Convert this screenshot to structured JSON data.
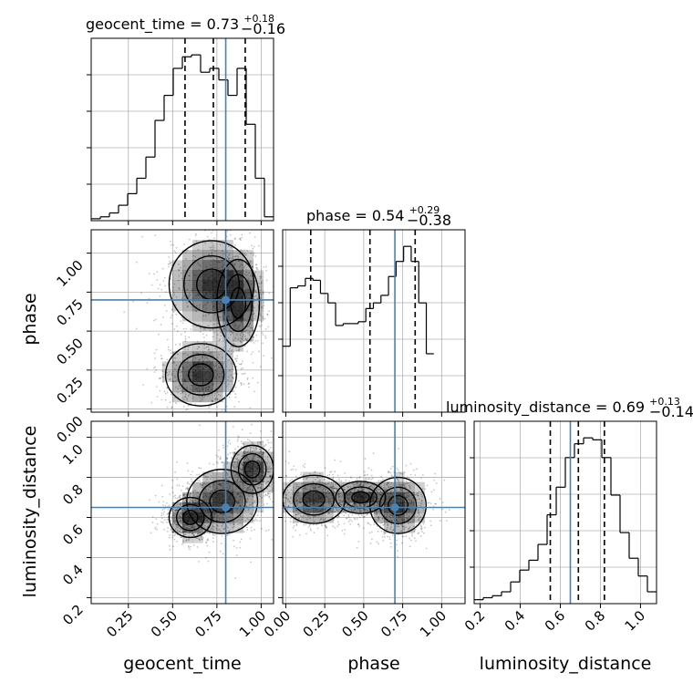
{
  "chart_data": {
    "type": "corner",
    "parameters": [
      "geocent_time",
      "phase",
      "luminosity_distance"
    ],
    "titles": {
      "geocent_time": {
        "name": "geocent_time",
        "median": "0.73",
        "plus": "+0.18",
        "minus": "−0.16"
      },
      "phase": {
        "name": "phase",
        "median": "0.54",
        "plus": "+0.29",
        "minus": "−0.38"
      },
      "luminosity_distance": {
        "name": "luminosity_distance",
        "median": "0.69",
        "plus": "+0.13",
        "minus": "−0.14"
      }
    },
    "axis_labels": {
      "x": [
        "geocent_time",
        "phase",
        "luminosity_distance"
      ],
      "y": [
        "phase",
        "luminosity_distance"
      ]
    },
    "ticks": {
      "geocent_time": {
        "range": [
          0.04,
          1.07
        ],
        "values": [
          0.25,
          0.5,
          0.75,
          1.0
        ],
        "labels": [
          "0.25",
          "0.50",
          "0.75",
          "1.00"
        ]
      },
      "phase": {
        "range": [
          -0.02,
          1.15
        ],
        "values": [
          0.0,
          0.25,
          0.5,
          0.75,
          1.0
        ],
        "labels": [
          "0.00",
          "0.25",
          "0.50",
          "0.75",
          "1.00"
        ]
      },
      "luminosity_distance": {
        "range": [
          0.17,
          1.08
        ],
        "values": [
          0.2,
          0.4,
          0.6,
          0.8,
          1.0
        ],
        "labels": [
          "0.2",
          "0.4",
          "0.6",
          "0.8",
          "1.0"
        ]
      }
    },
    "truths": {
      "geocent_time": 0.8,
      "phase": 0.7,
      "luminosity_distance": 0.65
    },
    "quantiles": {
      "geocent_time": [
        0.57,
        0.73,
        0.91
      ],
      "phase": [
        0.16,
        0.54,
        0.83
      ],
      "luminosity_distance": [
        0.55,
        0.69,
        0.82
      ]
    },
    "histograms": {
      "geocent_time": {
        "edges": [
          0.04,
          0.0915,
          0.143,
          0.1945,
          0.246,
          0.2975,
          0.349,
          0.4005,
          0.452,
          0.5035,
          0.555,
          0.6065,
          0.658,
          0.7095,
          0.761,
          0.8125,
          0.864,
          0.9155,
          0.967,
          1.0185,
          1.07
        ],
        "counts": [
          1,
          2,
          4,
          8,
          14,
          22,
          33,
          52,
          65,
          79,
          85,
          86,
          77,
          79,
          73,
          65,
          79,
          50,
          22,
          2
        ]
      },
      "phase": {
        "edges": [
          -0.02,
          0.0285,
          0.077,
          0.1255,
          0.174,
          0.2225,
          0.271,
          0.3195,
          0.368,
          0.4165,
          0.465,
          0.5135,
          0.562,
          0.6105,
          0.659,
          0.7075,
          0.756,
          0.8045,
          0.853,
          0.9015,
          0.95
        ],
        "counts": [
          35,
          66,
          67,
          71,
          70,
          63,
          58,
          46,
          47,
          47,
          48,
          55,
          58,
          62,
          72,
          80,
          88,
          80,
          58,
          31
        ]
      },
      "luminosity_distance": {
        "edges": [
          0.17,
          0.2155,
          0.261,
          0.3065,
          0.352,
          0.3975,
          0.443,
          0.4885,
          0.534,
          0.5795,
          0.625,
          0.6705,
          0.716,
          0.7615,
          0.807,
          0.8525,
          0.898,
          0.9435,
          0.989,
          1.0345,
          1.08
        ],
        "counts": [
          2,
          3,
          4,
          6,
          11,
          17,
          22,
          30,
          45,
          59,
          74,
          81,
          84,
          83,
          74,
          55,
          36,
          23,
          14,
          6
        ]
      }
    },
    "pairs": [
      {
        "x": "geocent_time",
        "y": "phase",
        "modes": [
          [
            0.72,
            0.8,
            0.12,
            0.14
          ],
          [
            0.87,
            0.68,
            0.06,
            0.14
          ],
          [
            0.66,
            0.22,
            0.1,
            0.1
          ]
        ]
      },
      {
        "x": "geocent_time",
        "y": "luminosity_distance",
        "modes": [
          [
            0.78,
            0.68,
            0.1,
            0.08
          ],
          [
            0.95,
            0.84,
            0.06,
            0.06
          ],
          [
            0.6,
            0.6,
            0.06,
            0.05
          ]
        ]
      },
      {
        "x": "phase",
        "y": "luminosity_distance",
        "modes": [
          [
            0.72,
            0.66,
            0.09,
            0.07
          ],
          [
            0.18,
            0.69,
            0.1,
            0.06
          ],
          [
            0.48,
            0.7,
            0.08,
            0.04
          ]
        ]
      }
    ],
    "colors": {
      "truth": "#4682b4",
      "hist": "#000000",
      "quantile": "#000000",
      "grid": "#b0b0b0",
      "density": "#000000"
    },
    "grid": true
  }
}
